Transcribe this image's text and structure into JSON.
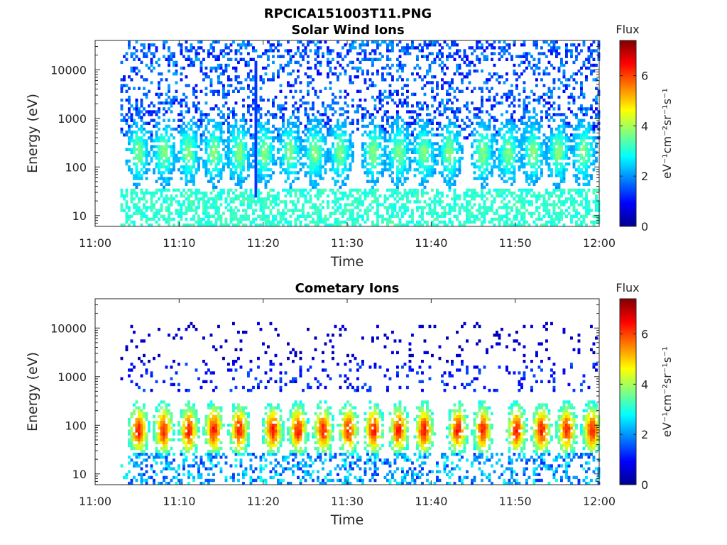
{
  "figure_title": "RPCICA151003T11.PNG",
  "chart_data": [
    {
      "type": "heatmap",
      "title": "Solar Wind Ions",
      "xlabel": "Time",
      "ylabel": "Energy (eV)",
      "x_ticks": [
        "11:00",
        "11:10",
        "11:20",
        "11:30",
        "11:40",
        "11:50",
        "12:00"
      ],
      "x_range": [
        "11:00",
        "12:00"
      ],
      "y_scale": "log",
      "y_range": [
        6,
        40000
      ],
      "y_ticks": [
        10,
        100,
        1000,
        10000
      ],
      "y_tick_labels": [
        "10",
        "100",
        "1000",
        "10000"
      ],
      "colormap": "jet",
      "colorbar": {
        "title": "Flux",
        "unit": "eV⁻¹cm⁻²sr⁻¹s⁻¹",
        "range": [
          0,
          7.4
        ],
        "ticks": [
          0,
          2,
          4,
          6
        ],
        "tick_labels": [
          "0",
          "2",
          "4",
          "6"
        ]
      },
      "data_start": "11:03",
      "data_end": "12:00",
      "burst_peaks": [
        "11:05",
        "11:08",
        "11:11",
        "11:14",
        "11:17",
        "11:20",
        "11:23",
        "11:26",
        "11:29",
        "11:33",
        "11:36",
        "11:39",
        "11:42",
        "11:46",
        "11:49",
        "11:52",
        "11:55",
        "11:58"
      ],
      "peak_energy_eV": 200,
      "peak_flux": 3.6,
      "spike_time": "11:19"
    },
    {
      "type": "heatmap",
      "title": "Cometary Ions",
      "xlabel": "Time",
      "ylabel": "Energy (eV)",
      "x_ticks": [
        "11:00",
        "11:10",
        "11:20",
        "11:30",
        "11:40",
        "11:50",
        "12:00"
      ],
      "x_range": [
        "11:00",
        "12:00"
      ],
      "y_scale": "log",
      "y_range": [
        6,
        40000
      ],
      "y_ticks": [
        10,
        100,
        1000,
        10000
      ],
      "y_tick_labels": [
        "10",
        "100",
        "1000",
        "10000"
      ],
      "colormap": "jet",
      "colorbar": {
        "title": "Flux",
        "unit": "eV⁻¹cm⁻²sr⁻¹s⁻¹",
        "range": [
          0,
          7.4
        ],
        "ticks": [
          0,
          2,
          4,
          6
        ],
        "tick_labels": [
          "0",
          "2",
          "4",
          "6"
        ]
      },
      "data_start": "11:03",
      "data_end": "12:00",
      "burst_peaks": [
        "11:05",
        "11:08",
        "11:11",
        "11:14",
        "11:17",
        "11:21",
        "11:24",
        "11:27",
        "11:30",
        "11:33",
        "11:36",
        "11:39",
        "11:43",
        "11:46",
        "11:50",
        "11:53",
        "11:56",
        "11:59"
      ],
      "peak_energy_eV": 80,
      "peak_flux": 6.3,
      "spike_time": ""
    }
  ],
  "colors": {
    "axis": "#262626",
    "background": "#ffffff"
  }
}
